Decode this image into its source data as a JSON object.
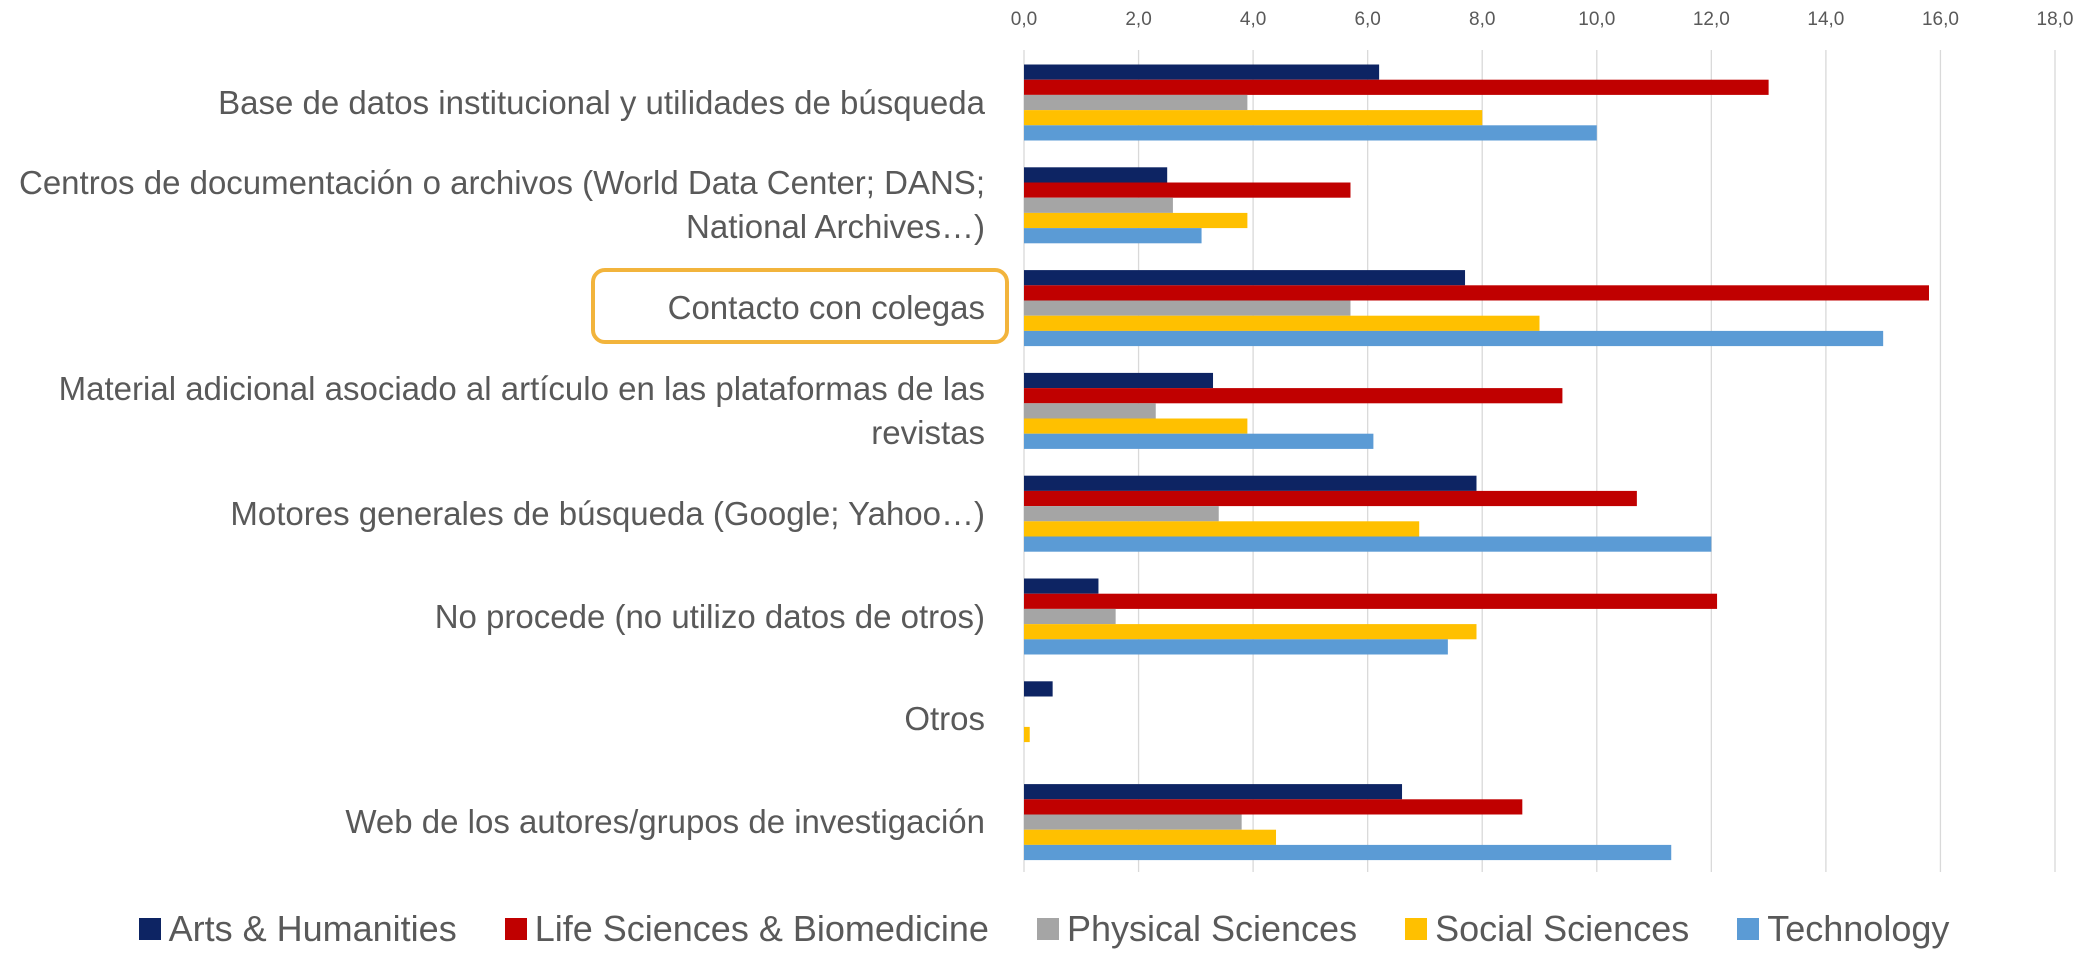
{
  "chart_data": {
    "type": "hbar",
    "categories": [
      "Base de datos institucional y utilidades de búsqueda",
      "Centros de documentación o archivos (World Data Center; DANS; National Archives…)",
      "Contacto con colegas",
      "Material adicional asociado al artículo en las plataformas de las revistas",
      "Motores generales de búsqueda (Google; Yahoo…)",
      "No procede (no utilizo datos de otros)",
      "Otros",
      "Web de los autores/grupos de investigación"
    ],
    "series": [
      {
        "name": "Arts & Humanities",
        "color": "#0d2463",
        "values": [
          6.2,
          2.5,
          7.7,
          3.3,
          7.9,
          1.3,
          0.5,
          6.6
        ]
      },
      {
        "name": "Life Sciences & Biomedicine",
        "color": "#c00000",
        "values": [
          13.0,
          5.7,
          15.8,
          9.4,
          10.7,
          12.1,
          0,
          8.7
        ]
      },
      {
        "name": "Physical Sciences",
        "color": "#a5a5a5",
        "values": [
          3.9,
          2.6,
          5.7,
          2.3,
          3.4,
          1.6,
          0,
          3.8
        ]
      },
      {
        "name": "Social Sciences",
        "color": "#ffc000",
        "values": [
          8.0,
          3.9,
          9.0,
          3.9,
          6.9,
          7.9,
          0.1,
          4.4
        ]
      },
      {
        "name": "Technology",
        "color": "#5b9bd5",
        "values": [
          10.0,
          3.1,
          15.0,
          6.1,
          12.0,
          7.4,
          0,
          11.3
        ]
      }
    ],
    "xlim": [
      0,
      18
    ],
    "xticks": [
      {
        "value": 0,
        "label": "0,0"
      },
      {
        "value": 2,
        "label": "2,0"
      },
      {
        "value": 4,
        "label": "4,0"
      },
      {
        "value": 6,
        "label": "6,0"
      },
      {
        "value": 8,
        "label": "8,0"
      },
      {
        "value": 10,
        "label": "10,0"
      },
      {
        "value": 12,
        "label": "12,0"
      },
      {
        "value": 14,
        "label": "14,0"
      },
      {
        "value": 16,
        "label": "16,0"
      },
      {
        "value": 18,
        "label": "18,0"
      }
    ],
    "grid": true,
    "legend": "bottom"
  }
}
